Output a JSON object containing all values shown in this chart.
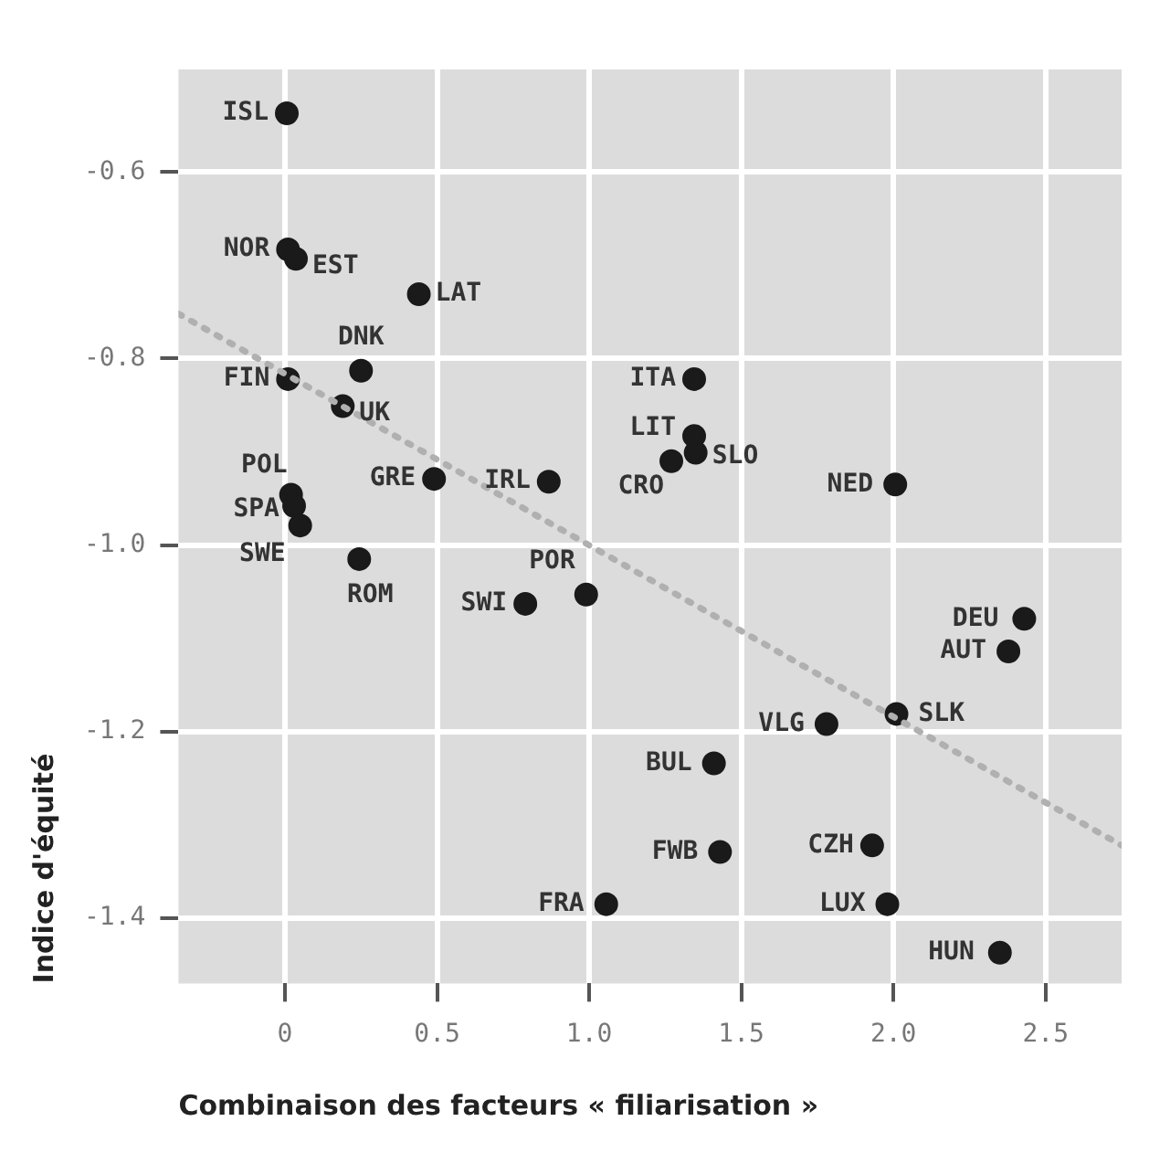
{
  "chart_data": {
    "type": "scatter",
    "xlabel": "Combinaison des facteurs « filiarisation »",
    "ylabel": "Indice d'équité",
    "xlim": [
      -0.35,
      2.75
    ],
    "xticks": [
      {
        "value": 0,
        "label": "0"
      },
      0.5,
      {
        "value": 1,
        "label": "1.0"
      },
      1.5,
      {
        "value": 2,
        "label": "2.0"
      },
      2.5
    ],
    "ylim": [
      -1.47,
      -0.49
    ],
    "yticks": [
      -0.6,
      -0.8,
      {
        "value": -1,
        "label": "-1.0"
      },
      -1.2,
      -1.4
    ],
    "grid": true,
    "legend": false,
    "marker": "circle",
    "series": [
      {
        "type": "scatter",
        "color": "#1a1a1a",
        "x": [
          0.006,
          0.01,
          0.036,
          0.44,
          0.25,
          0.01,
          0.19,
          1.345,
          1.345,
          1.35,
          1.27,
          2.006,
          0.49,
          0.867,
          0.02,
          0.03,
          0.05,
          0.244,
          0.99,
          0.79,
          1.056,
          2.43,
          2.378,
          2.01,
          1.78,
          1.41,
          1.43,
          1.93,
          1.98,
          2.35
        ],
        "values": [
          -0.537,
          -0.683,
          -0.693,
          -0.731,
          -0.813,
          -0.822,
          -0.851,
          -0.822,
          -0.883,
          -0.901,
          -0.91,
          -0.935,
          -0.929,
          -0.932,
          -0.946,
          -0.958,
          -0.979,
          -1.015,
          -1.053,
          -1.063,
          -1.385,
          -1.079,
          -1.114,
          -1.181,
          -1.192,
          -1.234,
          -1.329,
          -1.322,
          -1.385,
          -1.437
        ]
      },
      {
        "type": "line",
        "color": "#b0b0b0",
        "line_style": "dotted",
        "marker": "none",
        "x": [
          -0.35,
          2.75
        ],
        "values": [
          -0.752,
          -1.322
        ]
      }
    ],
    "annotations": [
      {
        "text": "ISL",
        "x": 0.006,
        "y": -0.537
      },
      {
        "text": "NOR",
        "x": 0.01,
        "y": -0.683
      },
      {
        "text": "EST",
        "x": 0.036,
        "y": -0.693
      },
      {
        "text": "LAT",
        "x": 0.44,
        "y": -0.731
      },
      {
        "text": "DNK",
        "x": 0.25,
        "y": -0.813
      },
      {
        "text": "FIN",
        "x": 0.01,
        "y": -0.822
      },
      {
        "text": "UK",
        "x": 0.19,
        "y": -0.851
      },
      {
        "text": "ITA",
        "x": 1.345,
        "y": -0.822
      },
      {
        "text": "LIT",
        "x": 1.345,
        "y": -0.883
      },
      {
        "text": "SLO",
        "x": 1.35,
        "y": -0.901
      },
      {
        "text": "CRO",
        "x": 1.27,
        "y": -0.91
      },
      {
        "text": "NED",
        "x": 2.006,
        "y": -0.935
      },
      {
        "text": "GRE",
        "x": 0.49,
        "y": -0.929
      },
      {
        "text": "IRL",
        "x": 0.867,
        "y": -0.932
      },
      {
        "text": "POL",
        "x": 0.02,
        "y": -0.946
      },
      {
        "text": "SPA",
        "x": 0.03,
        "y": -0.958
      },
      {
        "text": "SWE",
        "x": 0.05,
        "y": -0.979
      },
      {
        "text": "ROM",
        "x": 0.244,
        "y": -1.015
      },
      {
        "text": "POR",
        "x": 0.99,
        "y": -1.053
      },
      {
        "text": "SWI",
        "x": 0.79,
        "y": -1.063
      },
      {
        "text": "FRA",
        "x": 1.056,
        "y": -1.385
      },
      {
        "text": "DEU",
        "x": 2.43,
        "y": -1.079
      },
      {
        "text": "AUT",
        "x": 2.378,
        "y": -1.114
      },
      {
        "text": "SLK",
        "x": 2.01,
        "y": -1.181
      },
      {
        "text": "VLG",
        "x": 1.78,
        "y": -1.192
      },
      {
        "text": "BUL",
        "x": 1.41,
        "y": -1.234
      },
      {
        "text": "FWB",
        "x": 1.43,
        "y": -1.329
      },
      {
        "text": "CZH",
        "x": 1.93,
        "y": -1.322
      },
      {
        "text": "LUX",
        "x": 1.98,
        "y": -1.385
      },
      {
        "text": "HUN",
        "x": 2.35,
        "y": -1.437
      }
    ]
  }
}
